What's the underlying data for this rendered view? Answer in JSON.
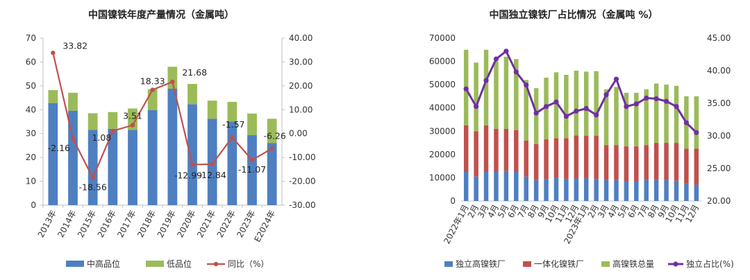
{
  "chart_data": [
    {
      "type": "bar",
      "title": "中国镍铁年度产量情况（金属吨）",
      "categories": [
        "2013年",
        "2014年",
        "2015年",
        "2016年",
        "2017年",
        "2018年",
        "2019年",
        "2020年",
        "2021年",
        "2022年",
        "2023年",
        "E2024年"
      ],
      "series": [
        {
          "name": "中高品位",
          "type": "bar",
          "axis": "left",
          "color": "#4e7fc1",
          "values": [
            42.8,
            39.6,
            31.5,
            32.0,
            31.5,
            39.8,
            48.8,
            42.3,
            36.2,
            35.0,
            29.4,
            26.0
          ]
        },
        {
          "name": "低品位",
          "type": "bar",
          "axis": "left",
          "color": "#9bbb59",
          "values": [
            5.4,
            7.5,
            7.0,
            7.0,
            9.0,
            8.8,
            9.2,
            8.5,
            7.6,
            8.3,
            9.0,
            10.2
          ]
        },
        {
          "name": "同比（%）",
          "type": "line",
          "axis": "right",
          "color": "#c0504d",
          "values": [
            33.82,
            -2.16,
            -18.56,
            1.08,
            3.51,
            18.33,
            21.68,
            -12.99,
            -12.84,
            -1.57,
            -11.07,
            -6.26
          ]
        }
      ],
      "left_axis": {
        "min": 0,
        "max": 70,
        "step": 10,
        "tick_labels": [
          "0",
          "10",
          "20",
          "30",
          "40",
          "50",
          "60",
          "70"
        ]
      },
      "right_axis": {
        "min": -30,
        "max": 40,
        "step": 10,
        "tick_labels": [
          "-30.00",
          "-20.00",
          "-10.00",
          "0.00",
          "10.00",
          "20.00",
          "30.00",
          "40.00"
        ]
      },
      "data_labels": [
        "33.82",
        "-2.16",
        "-18.56",
        "1.08",
        "3.51",
        "18.33",
        "21.68",
        "-12.99",
        "-12.84",
        "-1.57",
        "-11.07",
        "-6.26"
      ],
      "legend_position": "bottom",
      "grid": false
    },
    {
      "type": "bar",
      "title": "中国独立镍铁厂占比情况（金属吨 %）",
      "categories": [
        "2022年1月",
        "2月",
        "3月",
        "4月",
        "5月",
        "6月",
        "7月",
        "8月",
        "9月",
        "10月",
        "11月",
        "12月",
        "2023年1月",
        "2月",
        "3月",
        "4月",
        "5月",
        "6月",
        "7月",
        "8月",
        "9月",
        "10月",
        "11月",
        "12月"
      ],
      "series": [
        {
          "name": "独立高镍铁厂",
          "type": "bar",
          "axis": "left",
          "color": "#4e7fc1",
          "values": [
            12500,
            10500,
            12500,
            12500,
            13000,
            12500,
            10500,
            9000,
            9500,
            10000,
            9500,
            9700,
            9800,
            9500,
            9000,
            9000,
            8500,
            8500,
            9000,
            9000,
            9000,
            8700,
            7500,
            7000
          ]
        },
        {
          "name": "一体化镍铁厂",
          "type": "bar",
          "axis": "left",
          "color": "#c0504d",
          "values": [
            20000,
            19500,
            20000,
            18500,
            18000,
            18000,
            15500,
            15500,
            17000,
            17000,
            17500,
            18500,
            18300,
            18500,
            15000,
            15000,
            15000,
            15000,
            15000,
            16000,
            16000,
            16300,
            15000,
            15500
          ]
        },
        {
          "name": "高镍铁总量",
          "type": "bar",
          "axis": "left",
          "color": "#9bbb59",
          "values": [
            32500,
            29500,
            32500,
            29000,
            31000,
            30500,
            26000,
            24000,
            26500,
            28300,
            27200,
            27800,
            27500,
            27800,
            24000,
            25000,
            23000,
            23000,
            24000,
            25500,
            25000,
            24500,
            22500,
            22500
          ]
        },
        {
          "name": "独立占比(%)",
          "type": "line",
          "axis": "right",
          "color": "#7030a0",
          "values": [
            37.2,
            34.5,
            38.5,
            41.8,
            43.0,
            39.8,
            37.8,
            33.5,
            34.5,
            35.2,
            33.0,
            33.8,
            34.2,
            33.2,
            36.3,
            38.7,
            34.5,
            34.9,
            35.8,
            35.7,
            35.3,
            34.5,
            32.0,
            30.5
          ]
        }
      ],
      "left_axis": {
        "min": 0,
        "max": 70000,
        "step": 10000,
        "tick_labels": [
          "0",
          "10000",
          "20000",
          "30000",
          "40000",
          "50000",
          "60000",
          "70000"
        ]
      },
      "right_axis": {
        "min": 20,
        "max": 45,
        "step": 5,
        "tick_labels": [
          "20.00",
          "25.00",
          "30.00",
          "35.00",
          "40.00",
          "45.00"
        ]
      },
      "legend_position": "bottom",
      "grid": false
    }
  ]
}
